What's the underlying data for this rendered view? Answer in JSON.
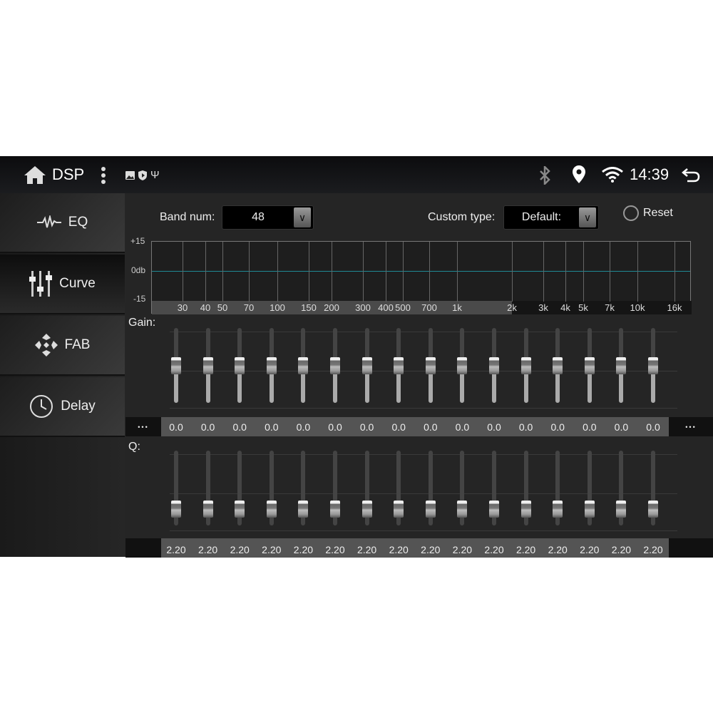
{
  "topbar": {
    "title": "DSP",
    "time": "14:39",
    "icons": [
      "home-icon",
      "more-vert-icon",
      "image-icon",
      "shield-play-icon",
      "usb-icon",
      "bluetooth-icon",
      "location-icon",
      "wifi-icon",
      "back-icon"
    ]
  },
  "sidebar": {
    "items": [
      {
        "label": "EQ",
        "icon": "waveform-icon"
      },
      {
        "label": "Curve",
        "icon": "sliders-icon",
        "selected": true
      },
      {
        "label": "FAB",
        "icon": "fader-balance-icon"
      },
      {
        "label": "Delay",
        "icon": "clock-icon"
      }
    ]
  },
  "controls": {
    "band_num_label": "Band num:",
    "band_num_value": "48",
    "custom_type_label": "Custom type:",
    "custom_type_value": "Default:",
    "reset_label": "Reset"
  },
  "graph": {
    "y_labels": [
      "+15",
      "0db",
      "-15"
    ],
    "freq_labels": [
      "30",
      "40",
      "50",
      "70",
      "100",
      "150",
      "200",
      "300",
      "400",
      "500",
      "700",
      "1k",
      "2k",
      "3k",
      "4k",
      "5k",
      "7k",
      "10k",
      "16k"
    ],
    "curve_color": "#1f8a95"
  },
  "gain": {
    "label": "Gain:",
    "more": "•••",
    "range": [
      -15,
      15
    ],
    "values": [
      "0.0",
      "0.0",
      "0.0",
      "0.0",
      "0.0",
      "0.0",
      "0.0",
      "0.0",
      "0.0",
      "0.0",
      "0.0",
      "0.0",
      "0.0",
      "0.0",
      "0.0",
      "0.0"
    ]
  },
  "q": {
    "label": "Q:",
    "values": [
      "2.20",
      "2.20",
      "2.20",
      "2.20",
      "2.20",
      "2.20",
      "2.20",
      "2.20",
      "2.20",
      "2.20",
      "2.20",
      "2.20",
      "2.20",
      "2.20",
      "2.20",
      "2.20"
    ]
  }
}
